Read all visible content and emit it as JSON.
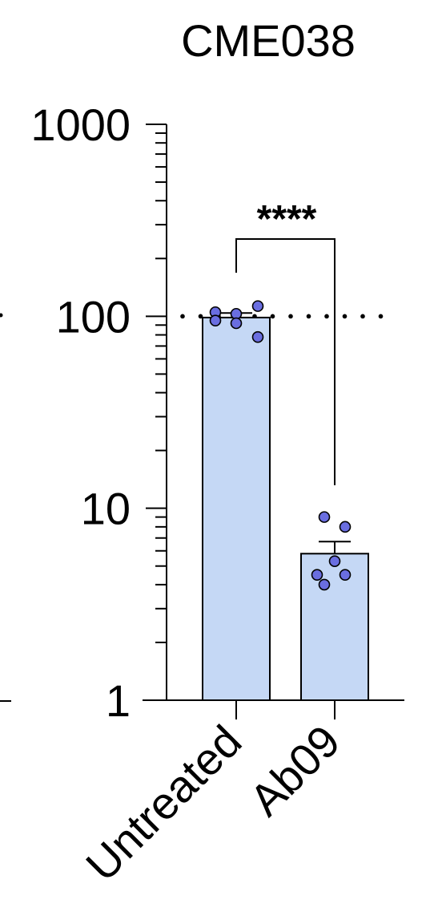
{
  "chart_data": {
    "type": "bar",
    "title": "CME038",
    "xlabel": "",
    "ylabel": "",
    "yscale": "log",
    "ylim": [
      1,
      1000
    ],
    "yticks": [
      1,
      10,
      100,
      1000
    ],
    "ytick_labels": [
      "1",
      "10",
      "100",
      "1000"
    ],
    "categories": [
      "Untreated",
      "Ab09"
    ],
    "values": [
      98.5,
      5.8
    ],
    "error_bars_sem": [
      [
        93,
        104
      ],
      [
        5.0,
        6.7
      ]
    ],
    "points": [
      [
        105,
        103,
        113,
        95,
        92,
        78
      ],
      [
        9.0,
        8.0,
        5.3,
        4.5,
        4.5,
        4.0
      ]
    ],
    "reference_line": {
      "y": 100,
      "style": "dotted"
    },
    "significance": {
      "label": "****",
      "between": [
        "Untreated",
        "Ab09"
      ]
    },
    "grid": false,
    "legend": "none",
    "colors": {
      "bar_fill": "#c5d8f5",
      "bar_stroke": "#000000",
      "point_fill": "#6a6ee0",
      "axis": "#000000"
    }
  }
}
